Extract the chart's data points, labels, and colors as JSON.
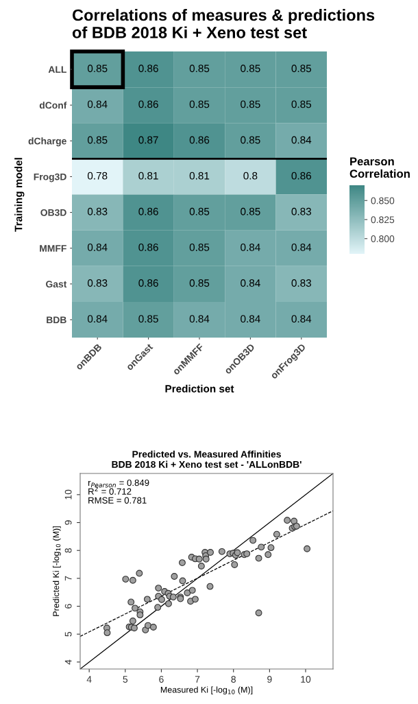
{
  "chart_data": [
    {
      "type": "heatmap",
      "title": "Correlations of measures & predictions\nof BDB 2018 Ki + Xeno test set",
      "xlabel": "Prediction set",
      "ylabel": "Training model",
      "clabel": "Pearson\nCorrelation",
      "categories": [
        "onBDB",
        "onGast",
        "onMMFF",
        "onOB3D",
        "onFrog3D"
      ],
      "y_categories": [
        "ALL",
        "dConf",
        "dCharge",
        "Frog3D",
        "OB3D",
        "MMFF",
        "Gast",
        "BDB"
      ],
      "cells": [
        [
          0.85,
          0.86,
          0.85,
          0.85,
          0.85
        ],
        [
          0.84,
          0.86,
          0.85,
          0.85,
          0.85
        ],
        [
          0.85,
          0.87,
          0.86,
          0.85,
          0.84
        ],
        [
          0.78,
          0.81,
          0.81,
          0.8,
          0.86
        ],
        [
          0.83,
          0.86,
          0.85,
          0.85,
          0.83
        ],
        [
          0.84,
          0.86,
          0.85,
          0.84,
          0.84
        ],
        [
          0.83,
          0.86,
          0.85,
          0.84,
          0.83
        ],
        [
          0.84,
          0.85,
          0.84,
          0.84,
          0.84
        ]
      ],
      "data_labels": true,
      "colors": [
        "#e2f4f8",
        "#3e8784"
      ],
      "clim": [
        0.78,
        0.87
      ],
      "cticks": [
        {
          "value": 0.8,
          "label": "0.800"
        },
        {
          "value": 0.825,
          "label": "0.825"
        },
        {
          "value": 0.85,
          "label": "0.850"
        }
      ]
    },
    {
      "type": "scatter",
      "title": "Predicted vs. Measured Affinities\nBDB 2018 Ki + Xeno test set - 'ALLonBDB'",
      "xlabel": "Measured Ki [-log$_{10}$ (M)]",
      "ylabel": "Predicted Ki [-log$_{10}$ (M)]",
      "annotations": [
        "r$_{Pearson}$ = 0.849",
        "R$^{2}$ = 0.712",
        "RMSE = 0.781"
      ],
      "xlim": [
        3.75,
        10.76
      ],
      "ylim": [
        3.75,
        10.76
      ],
      "xticks": [
        4,
        5,
        6,
        7,
        8,
        9,
        10
      ],
      "yticks": [
        4,
        5,
        6,
        7,
        8,
        9,
        10
      ],
      "grid": false,
      "marker": "circle",
      "series": [
        {
          "type": "scatter",
          "color": "#a0a0a0",
          "x": [
            4.49,
            4.5,
            5.01,
            5.21,
            5.39,
            5.16,
            5.27,
            5.41,
            5.41,
            5.21,
            5.11,
            5.17,
            5.25,
            5.56,
            5.63,
            5.78,
            5.61,
            5.92,
            5.92,
            6.01,
            5.9,
            6.09,
            6.19,
            6.23,
            6.33,
            6.2,
            6.36,
            6.58,
            6.59,
            6.53,
            6.53,
            6.72,
            6.86,
            6.81,
            6.94,
            6.84,
            6.94,
            7.05,
            7.11,
            7.21,
            7.23,
            7.24,
            7.36,
            7.35,
            7.68,
            7.9,
            7.99,
            8.06,
            8.11,
            8.03,
            8.3,
            8.37,
            8.54,
            8.77,
            8.7,
            8.96,
            9.04,
            9.2,
            9.49,
            9.68,
            9.63,
            9.7,
            9.75,
            10.04,
            8.7
          ],
          "values": [
            5.22,
            5.05,
            6.97,
            6.93,
            7.18,
            6.15,
            5.93,
            5.8,
            5.69,
            5.47,
            5.26,
            5.25,
            5.22,
            5.15,
            5.31,
            5.25,
            6.25,
            6.65,
            6.36,
            6.24,
            5.96,
            6.53,
            6.46,
            6.36,
            6.33,
            6.09,
            7.07,
            7.56,
            6.91,
            6.33,
            6.27,
            6.48,
            6.57,
            6.18,
            6.25,
            7.76,
            7.7,
            7.69,
            7.44,
            7.93,
            7.81,
            7.69,
            7.93,
            6.71,
            7.96,
            7.88,
            7.9,
            7.83,
            7.92,
            7.49,
            7.85,
            7.88,
            8.36,
            8.12,
            7.72,
            7.85,
            8.1,
            8.58,
            9.08,
            9.05,
            8.8,
            8.85,
            8.87,
            8.06,
            5.76
          ]
        },
        {
          "type": "line",
          "color": "#000000",
          "line_style": "solid",
          "marker": "none",
          "x": [
            3.75,
            10.76
          ],
          "values": [
            3.75,
            10.76
          ]
        },
        {
          "type": "line",
          "color": "#000000",
          "line_style": "dashed",
          "marker": "none",
          "x": [
            3.75,
            10.76
          ],
          "values": [
            4.92,
            9.42
          ]
        }
      ]
    }
  ]
}
